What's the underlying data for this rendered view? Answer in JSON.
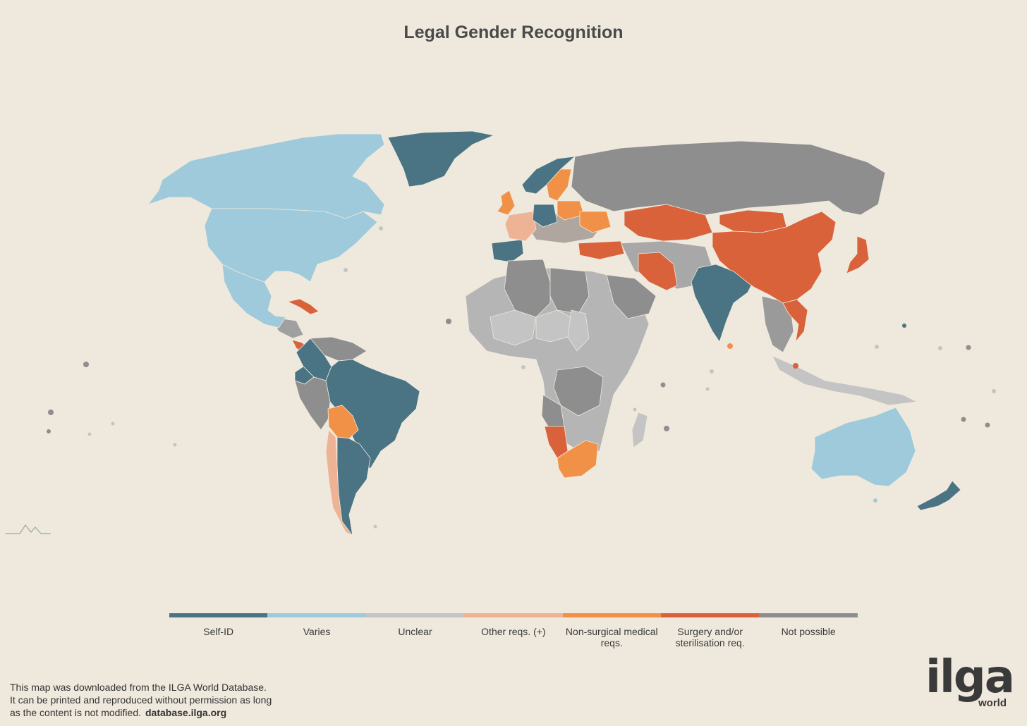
{
  "title": "Legal Gender Recognition",
  "legend": [
    {
      "label": "Self-ID",
      "color": "#4a7483"
    },
    {
      "label": "Varies",
      "color": "#9ecadb"
    },
    {
      "label": "Unclear",
      "color": "#c4c4c4"
    },
    {
      "label": "Other reqs. (+)",
      "color": "#eeb394"
    },
    {
      "label": "Non-surgical medical reqs.",
      "color": "#f19147"
    },
    {
      "label": "Surgery and/or sterilisation req.",
      "color": "#d9623a"
    },
    {
      "label": "Not possible",
      "color": "#8e8e8e"
    }
  ],
  "regions": [
    {
      "name": "Canada",
      "category": "Varies"
    },
    {
      "name": "United States",
      "category": "Varies"
    },
    {
      "name": "Mexico",
      "category": "Varies"
    },
    {
      "name": "Australia",
      "category": "Varies"
    },
    {
      "name": "Greenland",
      "category": "Self-ID"
    },
    {
      "name": "Brazil",
      "category": "Self-ID"
    },
    {
      "name": "Argentina",
      "category": "Self-ID"
    },
    {
      "name": "Colombia",
      "category": "Self-ID"
    },
    {
      "name": "Ecuador",
      "category": "Self-ID"
    },
    {
      "name": "India",
      "category": "Self-ID"
    },
    {
      "name": "New Zealand",
      "category": "Self-ID"
    },
    {
      "name": "Spain",
      "category": "Self-ID"
    },
    {
      "name": "Norway",
      "category": "Self-ID"
    },
    {
      "name": "Germany",
      "category": "Self-ID"
    },
    {
      "name": "Chile",
      "category": "Other reqs. (+)"
    },
    {
      "name": "France",
      "category": "Other reqs. (+)"
    },
    {
      "name": "Bolivia",
      "category": "Non-surgical medical reqs."
    },
    {
      "name": "South Africa",
      "category": "Non-surgical medical reqs."
    },
    {
      "name": "Sweden",
      "category": "Non-surgical medical reqs."
    },
    {
      "name": "United Kingdom",
      "category": "Non-surgical medical reqs."
    },
    {
      "name": "Poland",
      "category": "Non-surgical medical reqs."
    },
    {
      "name": "Ukraine",
      "category": "Non-surgical medical reqs."
    },
    {
      "name": "China",
      "category": "Surgery and/or sterilisation req."
    },
    {
      "name": "Kazakhstan",
      "category": "Surgery and/or sterilisation req."
    },
    {
      "name": "Mongolia",
      "category": "Surgery and/or sterilisation req."
    },
    {
      "name": "Iran",
      "category": "Surgery and/or sterilisation req."
    },
    {
      "name": "Turkey",
      "category": "Surgery and/or sterilisation req."
    },
    {
      "name": "Japan",
      "category": "Surgery and/or sterilisation req."
    },
    {
      "name": "Namibia",
      "category": "Surgery and/or sterilisation req."
    },
    {
      "name": "Vietnam",
      "category": "Surgery and/or sterilisation req."
    },
    {
      "name": "Cuba",
      "category": "Surgery and/or sterilisation req."
    },
    {
      "name": "Panama",
      "category": "Surgery and/or sterilisation req."
    },
    {
      "name": "Russia",
      "category": "Not possible"
    },
    {
      "name": "Peru",
      "category": "Not possible"
    },
    {
      "name": "Venezuela",
      "category": "Not possible"
    },
    {
      "name": "Algeria",
      "category": "Not possible"
    },
    {
      "name": "Libya",
      "category": "Not possible"
    },
    {
      "name": "Saudi Arabia",
      "category": "Not possible"
    },
    {
      "name": "Angola",
      "category": "Not possible"
    },
    {
      "name": "Congo DR",
      "category": "Not possible"
    },
    {
      "name": "Mali",
      "category": "Unclear"
    },
    {
      "name": "Niger",
      "category": "Unclear"
    },
    {
      "name": "Chad",
      "category": "Unclear"
    },
    {
      "name": "Madagascar",
      "category": "Unclear"
    },
    {
      "name": "Indonesia",
      "category": "Unclear"
    }
  ],
  "footer": {
    "line1": "This map was downloaded from the ILGA World Database.",
    "line2": "It can be printed and reproduced without permission as long",
    "line3": "as the content is not modified.",
    "url": "database.ilga.org"
  },
  "logo": {
    "main": "ilga",
    "sub": "world"
  }
}
